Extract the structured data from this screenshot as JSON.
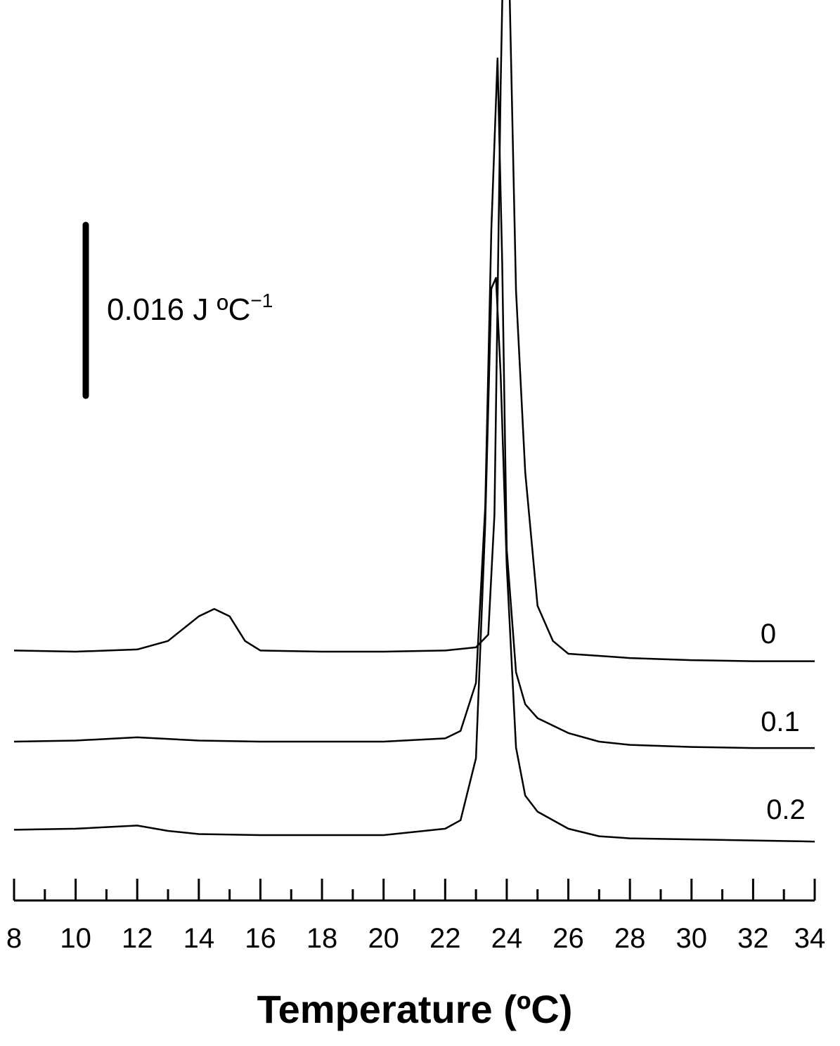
{
  "chart_data": {
    "type": "line",
    "xlabel": "Temperature (ºC)",
    "xlim": [
      8,
      34
    ],
    "x_ticks_major": [
      8,
      10,
      12,
      14,
      16,
      18,
      20,
      22,
      24,
      26,
      28,
      30,
      32,
      34
    ],
    "x_tick_labels": [
      "8",
      "10",
      "12",
      "14",
      "16",
      "18",
      "20",
      "22",
      "24",
      "26",
      "28",
      "30",
      "32",
      "34"
    ],
    "x_minor_step": 1,
    "y_axis": "none (curves vertically offset)",
    "scale_bar": {
      "label": "0.016 J ºC",
      "label_exponent": "−1",
      "value": 0.016
    },
    "series": [
      {
        "name": "0",
        "points": [
          [
            8,
            0.0003
          ],
          [
            10,
            0.0002
          ],
          [
            12,
            0.0004
          ],
          [
            13,
            0.0012
          ],
          [
            14,
            0.0035
          ],
          [
            14.5,
            0.0042
          ],
          [
            15,
            0.0035
          ],
          [
            15.5,
            0.0012
          ],
          [
            16,
            0.0003
          ],
          [
            18,
            0.0002
          ],
          [
            20,
            0.0002
          ],
          [
            22,
            0.0003
          ],
          [
            23,
            0.0006
          ],
          [
            23.4,
            0.0018
          ],
          [
            23.6,
            0.013
          ],
          [
            23.8,
            0.053
          ],
          [
            23.9,
            0.068
          ],
          [
            24.0,
            0.076
          ],
          [
            24.1,
            0.061
          ],
          [
            24.3,
            0.034
          ],
          [
            24.6,
            0.017
          ],
          [
            25,
            0.0045
          ],
          [
            25.5,
            0.0012
          ],
          [
            26,
            0
          ],
          [
            27,
            -0.0002
          ],
          [
            28,
            -0.0004
          ],
          [
            30,
            -0.0006
          ],
          [
            32,
            -0.0007
          ],
          [
            34,
            -0.0007
          ]
        ]
      },
      {
        "name": "0.1",
        "points": [
          [
            8,
            0
          ],
          [
            10,
            0.0001
          ],
          [
            12,
            0.0004
          ],
          [
            14,
            0.0001
          ],
          [
            16,
            0
          ],
          [
            18,
            0
          ],
          [
            20,
            0
          ],
          [
            22,
            0.0003
          ],
          [
            22.5,
            0.001
          ],
          [
            23,
            0.0055
          ],
          [
            23.3,
            0.022
          ],
          [
            23.5,
            0.048
          ],
          [
            23.7,
            0.064
          ],
          [
            23.85,
            0.045
          ],
          [
            24,
            0.018
          ],
          [
            24.3,
            0.0065
          ],
          [
            24.6,
            0.0035
          ],
          [
            25,
            0.0022
          ],
          [
            26,
            0.0008
          ],
          [
            27,
            0
          ],
          [
            28,
            -0.0003
          ],
          [
            30,
            -0.0005
          ],
          [
            32,
            -0.0006
          ],
          [
            34,
            -0.0006
          ]
        ]
      },
      {
        "name": "0.2",
        "points": [
          [
            8,
            0.0003
          ],
          [
            10,
            0.0004
          ],
          [
            12,
            0.0007
          ],
          [
            13,
            0.0002
          ],
          [
            14,
            -0.0001
          ],
          [
            16,
            -0.0002
          ],
          [
            18,
            -0.0002
          ],
          [
            20,
            -0.0002
          ],
          [
            22,
            0.0004
          ],
          [
            22.5,
            0.0012
          ],
          [
            23,
            0.007
          ],
          [
            23.3,
            0.029
          ],
          [
            23.5,
            0.051
          ],
          [
            23.65,
            0.052
          ],
          [
            23.8,
            0.043
          ],
          [
            24,
            0.025
          ],
          [
            24.3,
            0.008
          ],
          [
            24.6,
            0.0035
          ],
          [
            25,
            0.002
          ],
          [
            26,
            0.0004
          ],
          [
            27,
            -0.0003
          ],
          [
            28,
            -0.0005
          ],
          [
            30,
            -0.0006
          ],
          [
            32,
            -0.0007
          ],
          [
            34,
            -0.0008
          ]
        ]
      }
    ]
  }
}
